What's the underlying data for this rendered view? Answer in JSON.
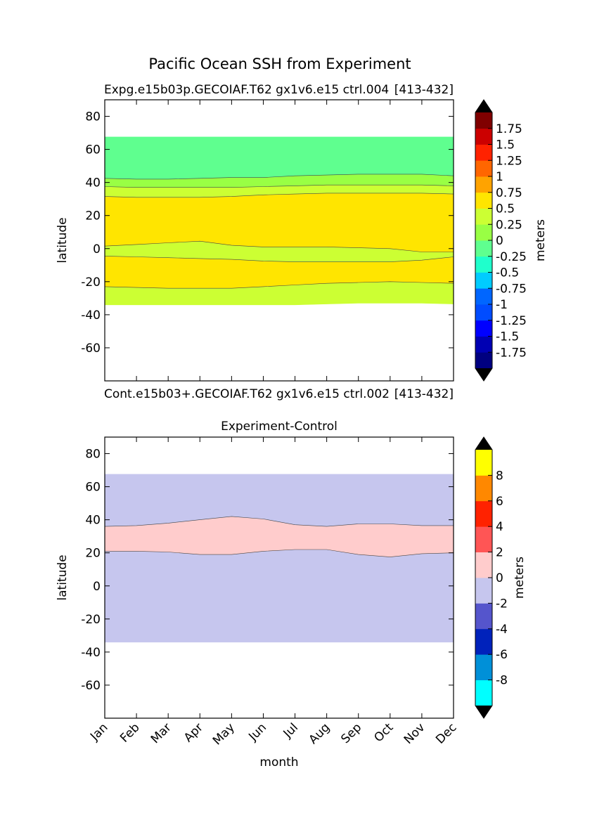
{
  "figure": {
    "suptitle": "Pacific Ocean SSH from Experiment",
    "colors": {
      "background": "#ffffff",
      "axes": "#000000",
      "missing": "#ffffff"
    }
  },
  "chart_data": [
    {
      "type": "contourf",
      "title": "",
      "left_label": "Expg.e15b03p.GECOIAF.T62 gx1v6.e15 ctrl.004",
      "right_label": "[413-432]",
      "xlabel": "",
      "ylabel": "latitude",
      "x_range": [
        0,
        11
      ],
      "ylim": [
        -80,
        90
      ],
      "yticks": [
        -60,
        -40,
        -20,
        0,
        20,
        40,
        60,
        80
      ],
      "x_months": [
        0,
        1,
        2,
        3,
        4,
        5,
        6,
        7,
        8,
        9,
        10,
        11
      ],
      "valid_lat_range": [
        -34,
        67.5
      ],
      "bands": [
        {
          "color": "#ccff33",
          "lower": [
            -34,
            -34,
            -34,
            -34,
            -34,
            -34,
            -34,
            -33.5,
            -33,
            -33,
            -33,
            -33.5
          ],
          "upper": [
            -23,
            -23.5,
            -24,
            -24,
            -24,
            -23,
            -22,
            -21,
            -20.5,
            -20,
            -20.5,
            -21
          ]
        },
        {
          "color": "#ffe500",
          "lower": [
            -23,
            -23.5,
            -24,
            -24,
            -24,
            -23,
            -22,
            -21,
            -20.5,
            -20,
            -20.5,
            -21
          ],
          "upper": [
            -4.5,
            -5,
            -5.5,
            -6,
            -6.5,
            -7.5,
            -8,
            -8,
            -8,
            -8,
            -7,
            -5
          ]
        },
        {
          "color": "#ccff33",
          "lower": [
            -4.5,
            -5,
            -5.5,
            -6,
            -6.5,
            -7.5,
            -8,
            -8,
            -8,
            -8,
            -7,
            -5
          ],
          "upper": [
            1.5,
            2.5,
            3.5,
            4.5,
            2,
            1,
            1,
            1,
            0.5,
            0,
            -2,
            -2
          ]
        },
        {
          "color": "#ffe500",
          "lower": [
            1.5,
            2.5,
            3.5,
            4.5,
            2,
            1,
            1,
            1,
            0.5,
            0,
            -2,
            -2
          ],
          "upper": [
            31.5,
            31,
            31,
            31,
            31.5,
            32.5,
            33,
            33.5,
            33.5,
            33.5,
            33.5,
            33
          ]
        },
        {
          "color": "#ccff33",
          "lower": [
            31.5,
            31,
            31,
            31,
            31.5,
            32.5,
            33,
            33.5,
            33.5,
            33.5,
            33.5,
            33
          ],
          "upper": [
            37.5,
            37,
            37,
            37,
            37,
            37.5,
            38,
            38.5,
            38.5,
            38.5,
            38.5,
            38
          ]
        },
        {
          "color": "#99ff44",
          "lower": [
            37.5,
            37,
            37,
            37,
            37,
            37.5,
            38,
            38.5,
            38.5,
            38.5,
            38.5,
            38
          ],
          "upper": [
            42.5,
            42,
            42,
            42.5,
            43,
            43,
            44,
            44.5,
            45,
            45,
            45,
            44
          ]
        },
        {
          "color": "#5fff8f",
          "lower": [
            42.5,
            42,
            42,
            42.5,
            43,
            43,
            44,
            44.5,
            45,
            45,
            45,
            44
          ],
          "upper": [
            67.5,
            67.5,
            67.5,
            67.5,
            67.5,
            67.5,
            67.5,
            67.5,
            67.5,
            67.5,
            67.5,
            67.5
          ]
        }
      ],
      "colorbar": {
        "label": "meters",
        "colors": [
          "#000080",
          "#0000b3",
          "#0000ff",
          "#004cff",
          "#0066ff",
          "#00ccff",
          "#1fffcc",
          "#5fff8f",
          "#99ff44",
          "#ccff33",
          "#ffe500",
          "#ffa300",
          "#ff6600",
          "#ff2200",
          "#cc0000",
          "#800000"
        ],
        "over": "#000000",
        "under": "#000000",
        "tick_labels": [
          "-1.75",
          "-1.5",
          "-1.25",
          "-1",
          "-0.75",
          "-0.5",
          "-0.25",
          "0",
          "0.25",
          "0.5",
          "0.75",
          "1",
          "1.25",
          "1.5",
          "1.75"
        ]
      }
    },
    {
      "type": "contourf",
      "title": "Experiment-Control",
      "left_label": "Cont.e15b03+.GECOIAF.T62 gx1v6.e15 ctrl.002",
      "right_label": "[413-432]",
      "xlabel": "month",
      "ylabel": "latitude",
      "x_range": [
        0,
        11
      ],
      "ylim": [
        -80,
        90
      ],
      "yticks": [
        -60,
        -40,
        -20,
        0,
        20,
        40,
        60,
        80
      ],
      "x_months": [
        0,
        1,
        2,
        3,
        4,
        5,
        6,
        7,
        8,
        9,
        10,
        11
      ],
      "xtick_labels": [
        "Jan",
        "Feb",
        "Mar",
        "Apr",
        "May",
        "Jun",
        "Jul",
        "Aug",
        "Sep",
        "Oct",
        "Nov",
        "Dec"
      ],
      "valid_lat_range": [
        -34,
        67.5
      ],
      "bands": [
        {
          "color": "#c6c6ee",
          "lower": [
            -34,
            -34,
            -34,
            -34,
            -34,
            -34,
            -34,
            -34,
            -34,
            -34,
            -34,
            -34
          ],
          "upper": [
            21,
            21,
            20.5,
            19,
            19,
            21,
            22,
            22,
            19,
            17.5,
            19.5,
            20
          ]
        },
        {
          "color": "#ffcccc",
          "lower": [
            21,
            21,
            20.5,
            19,
            19,
            21,
            22,
            22,
            19,
            17.5,
            19.5,
            20
          ],
          "upper": [
            36,
            36.5,
            38,
            40,
            42,
            40.5,
            37,
            36,
            37.5,
            37.5,
            36.5,
            36.5
          ]
        },
        {
          "color": "#c6c6ee",
          "lower": [
            36,
            36.5,
            38,
            40,
            42,
            40.5,
            37,
            36,
            37.5,
            37.5,
            36.5,
            36.5
          ],
          "upper": [
            67.5,
            67.5,
            67.5,
            67.5,
            67.5,
            67.5,
            67.5,
            67.5,
            67.5,
            67.5,
            67.5,
            67.5
          ]
        }
      ],
      "colorbar": {
        "label": "meters",
        "colors": [
          "#00ffff",
          "#0090d8",
          "#0022bb",
          "#5555cc",
          "#c6c6ee",
          "#ffcccc",
          "#ff5555",
          "#ff2200",
          "#ff8800",
          "#ffff00"
        ],
        "over": "#000000",
        "under": "#000000",
        "tick_labels": [
          "-8",
          "-6",
          "-4",
          "-2",
          "0",
          "2",
          "4",
          "6",
          "8"
        ]
      }
    }
  ]
}
